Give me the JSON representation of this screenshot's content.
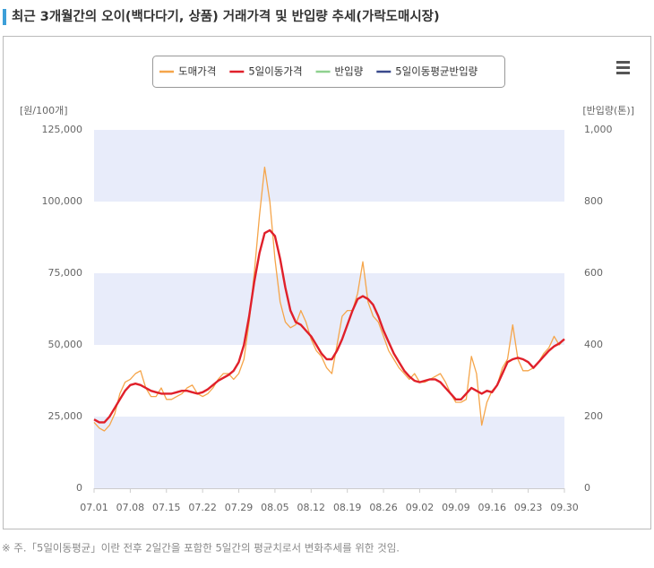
{
  "chart_data": {
    "type": "line",
    "title": "최근 3개월간의 오이(백다다기, 상품) 거래가격 및 반입량 추세(가락도매시장)",
    "ylabel": "[원/100개]",
    "y2label": "[반입량(톤)]",
    "note": "※ 주.「5일이동평균」이란 전후 2일간을 포함한 5일간의 평균치로서 변화추세를 위한 것임.",
    "categories": [
      "07.01",
      null,
      null,
      null,
      null,
      null,
      null,
      "07.08",
      null,
      null,
      null,
      null,
      null,
      null,
      "07.15",
      null,
      null,
      null,
      null,
      null,
      null,
      "07.22",
      null,
      null,
      null,
      null,
      null,
      null,
      "07.29",
      null,
      null,
      null,
      null,
      null,
      null,
      "08.05",
      null,
      null,
      null,
      null,
      null,
      null,
      "08.12",
      null,
      null,
      null,
      null,
      null,
      null,
      "08.19",
      null,
      null,
      null,
      null,
      null,
      null,
      "08.26",
      null,
      null,
      null,
      null,
      null,
      null,
      "09.02",
      null,
      null,
      null,
      null,
      null,
      null,
      "09.09",
      null,
      null,
      null,
      null,
      null,
      null,
      "09.16",
      null,
      null,
      null,
      null,
      null,
      null,
      "09.23",
      null,
      null,
      null,
      null,
      null,
      null,
      "09.30"
    ],
    "series": [
      {
        "name": "도매가격",
        "color": "#f5a54a",
        "width": 1.3,
        "values": [
          23000,
          21000,
          20000,
          22000,
          26000,
          33000,
          37000,
          38000,
          40000,
          41000,
          35000,
          32000,
          32000,
          35000,
          31000,
          31000,
          32000,
          33000,
          35000,
          36000,
          33000,
          32000,
          33000,
          35000,
          38000,
          40000,
          40000,
          38000,
          40000,
          45000,
          58000,
          75000,
          95000,
          112000,
          100000,
          80000,
          65000,
          58000,
          56000,
          57000,
          62000,
          58000,
          52000,
          48000,
          46000,
          42000,
          40000,
          50000,
          60000,
          62000,
          62000,
          68000,
          79000,
          65000,
          60000,
          58000,
          53000,
          48000,
          45000,
          42000,
          40000,
          38000,
          40000,
          37000,
          37000,
          38000,
          39000,
          40000,
          37000,
          33000,
          30000,
          30000,
          31000,
          46000,
          40000,
          22000,
          30000,
          34000,
          36000,
          42000,
          45000,
          57000,
          45000,
          41000,
          41000,
          42000,
          44000,
          47000,
          49000,
          53000,
          50000,
          52000
        ]
      },
      {
        "name": "5일이동가격",
        "color": "#e0202a",
        "width": 2.4,
        "values": [
          24000,
          23000,
          23000,
          25000,
          28000,
          31000,
          34000,
          36000,
          36500,
          36000,
          35000,
          34000,
          33500,
          33000,
          33000,
          33000,
          33500,
          34000,
          34000,
          33500,
          33000,
          33500,
          34500,
          36000,
          37500,
          38500,
          39500,
          41000,
          44000,
          50000,
          60000,
          72000,
          82000,
          89000,
          90000,
          88000,
          80000,
          70000,
          62000,
          58000,
          57000,
          55000,
          53000,
          50000,
          47000,
          45000,
          45000,
          48000,
          52000,
          57000,
          62000,
          66000,
          67000,
          66000,
          64000,
          60000,
          55000,
          51000,
          47000,
          44000,
          41000,
          39000,
          37500,
          37000,
          37500,
          38000,
          38000,
          37000,
          35000,
          33000,
          31000,
          31000,
          33000,
          35000,
          34000,
          33000,
          34000,
          33500,
          36000,
          40000,
          44000,
          45000,
          45500,
          45000,
          44000,
          42000,
          44000,
          46000,
          48000,
          49500,
          50500,
          52000
        ]
      },
      {
        "name": "반입량",
        "color": "#8fd18f",
        "axis": "y2"
      },
      {
        "name": "5일이동평균반입량",
        "color": "#3a4a8c",
        "axis": "y2"
      }
    ],
    "ylim": [
      0,
      125000
    ],
    "yticks": [
      0,
      {
        "value": 25000,
        "label": "25,000"
      },
      {
        "value": 50000,
        "label": "50,000"
      },
      {
        "value": 75000,
        "label": "75,000"
      },
      {
        "value": 100000,
        "label": "100,000"
      },
      {
        "value": 125000,
        "label": "125,000"
      }
    ],
    "y2lim": [
      0,
      1000
    ],
    "y2ticks": [
      0,
      200,
      400,
      600,
      800,
      {
        "value": 1000,
        "label": "1,000"
      }
    ],
    "grid": "bands",
    "band_color": "#e8ecfa",
    "legend": "top"
  }
}
